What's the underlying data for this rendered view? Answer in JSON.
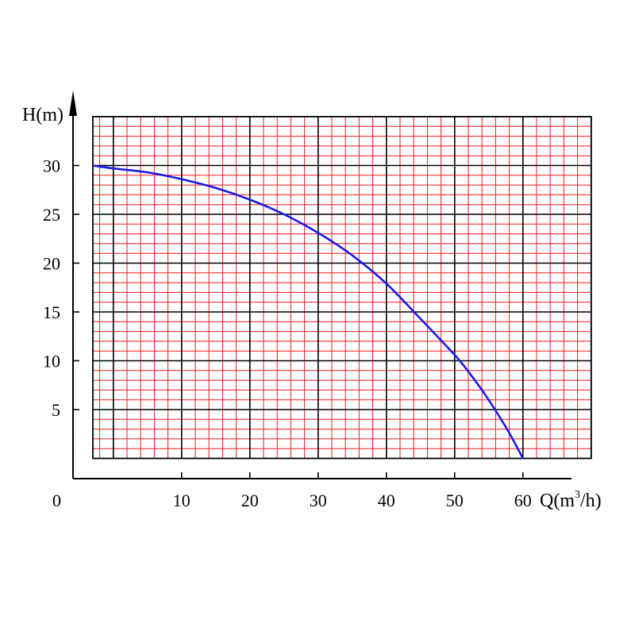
{
  "chart_data": {
    "type": "line",
    "xlabel": {
      "prefix": "Q(m",
      "sup": "3",
      "suffix": "/h)"
    },
    "ylabel": "H(m)",
    "origin_label": "0",
    "xlim": [
      -3,
      70
    ],
    "ylim": [
      0,
      35
    ],
    "x_ticks": [
      10,
      20,
      30,
      40,
      50,
      60
    ],
    "x_tick_labels": [
      "10",
      "20",
      "30",
      "40",
      "50",
      "60"
    ],
    "y_ticks": [
      5,
      10,
      15,
      20,
      25,
      30
    ],
    "y_tick_labels": [
      "5",
      "10",
      "15",
      "20",
      "25",
      "30"
    ],
    "grid": true,
    "series": [
      {
        "x": [
          -3,
          0,
          5,
          10,
          15,
          20,
          25,
          30,
          35,
          40,
          45,
          50,
          52,
          54,
          56,
          58,
          60
        ],
        "y": [
          30,
          29.7,
          29.3,
          28.6,
          27.7,
          26.5,
          25.0,
          23.1,
          20.8,
          17.9,
          14.3,
          10.6,
          8.9,
          7.0,
          4.9,
          2.6,
          0
        ]
      }
    ],
    "colors": {
      "major_grid": "#000000",
      "minor_grid": "#ee1c24",
      "curve": "#1a1ae6",
      "axis": "#000000"
    }
  }
}
